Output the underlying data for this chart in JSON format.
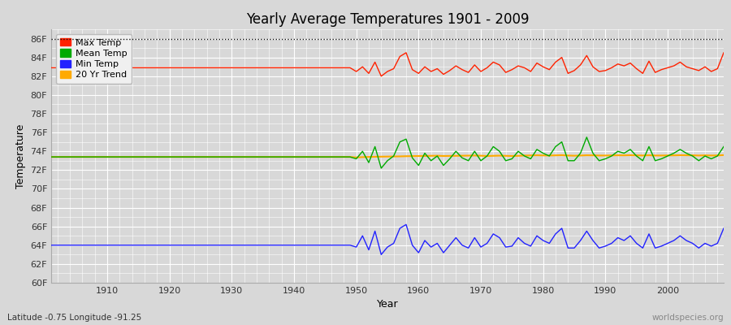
{
  "title": "Yearly Average Temperatures 1901 - 2009",
  "xlabel": "Year",
  "ylabel": "Temperature",
  "subtitle_left": "Latitude -0.75 Longitude -91.25",
  "subtitle_right": "worldspecies.org",
  "ylim": [
    60,
    87
  ],
  "yticks": [
    60,
    62,
    64,
    66,
    68,
    70,
    72,
    74,
    76,
    78,
    80,
    82,
    84,
    86
  ],
  "ytick_labels": [
    "60F",
    "62F",
    "64F",
    "66F",
    "68F",
    "70F",
    "72F",
    "74F",
    "76F",
    "78F",
    "80F",
    "82F",
    "84F",
    "86F"
  ],
  "xlim": [
    1901,
    2009
  ],
  "xticks": [
    1910,
    1920,
    1930,
    1940,
    1950,
    1960,
    1970,
    1980,
    1990,
    2000
  ],
  "hline_y": 86,
  "hline_color": "#111111",
  "bg_color": "#d8d8d8",
  "plot_bg_color": "#d8d8d8",
  "grid_color": "#ffffff",
  "max_color": "#ff2200",
  "mean_color": "#00aa00",
  "min_color": "#2222ff",
  "trend_color": "#ffaa00",
  "legend_labels": [
    "Max Temp",
    "Mean Temp",
    "Min Temp",
    "20 Yr Trend"
  ],
  "years": [
    1901,
    1902,
    1903,
    1904,
    1905,
    1906,
    1907,
    1908,
    1909,
    1910,
    1911,
    1912,
    1913,
    1914,
    1915,
    1916,
    1917,
    1918,
    1919,
    1920,
    1921,
    1922,
    1923,
    1924,
    1925,
    1926,
    1927,
    1928,
    1929,
    1930,
    1931,
    1932,
    1933,
    1934,
    1935,
    1936,
    1937,
    1938,
    1939,
    1940,
    1941,
    1942,
    1943,
    1944,
    1945,
    1946,
    1947,
    1948,
    1949,
    1950,
    1951,
    1952,
    1953,
    1954,
    1955,
    1956,
    1957,
    1958,
    1959,
    1960,
    1961,
    1962,
    1963,
    1964,
    1965,
    1966,
    1967,
    1968,
    1969,
    1970,
    1971,
    1972,
    1973,
    1974,
    1975,
    1976,
    1977,
    1978,
    1979,
    1980,
    1981,
    1982,
    1983,
    1984,
    1985,
    1986,
    1987,
    1988,
    1989,
    1990,
    1991,
    1992,
    1993,
    1994,
    1995,
    1996,
    1997,
    1998,
    1999,
    2000,
    2001,
    2002,
    2003,
    2004,
    2005,
    2006,
    2007,
    2008,
    2009
  ],
  "max_temp": [
    82.9,
    82.9,
    82.9,
    82.9,
    82.9,
    82.9,
    82.9,
    82.9,
    82.9,
    82.9,
    82.9,
    82.9,
    82.9,
    82.9,
    82.9,
    82.9,
    82.9,
    82.9,
    82.9,
    82.9,
    82.9,
    82.9,
    82.9,
    82.9,
    82.9,
    82.9,
    82.9,
    82.9,
    82.9,
    82.9,
    82.9,
    82.9,
    82.9,
    82.9,
    82.9,
    82.9,
    82.9,
    82.9,
    82.9,
    82.9,
    82.9,
    82.9,
    82.9,
    82.9,
    82.9,
    82.9,
    82.9,
    82.9,
    82.9,
    82.5,
    83.0,
    82.3,
    83.5,
    82.0,
    82.5,
    82.8,
    84.1,
    84.5,
    82.7,
    82.3,
    83.0,
    82.5,
    82.8,
    82.2,
    82.6,
    83.1,
    82.7,
    82.4,
    83.2,
    82.5,
    82.9,
    83.5,
    83.2,
    82.4,
    82.7,
    83.1,
    82.9,
    82.5,
    83.4,
    83.0,
    82.7,
    83.5,
    84.0,
    82.3,
    82.6,
    83.2,
    84.2,
    83.0,
    82.5,
    82.6,
    82.9,
    83.3,
    83.1,
    83.4,
    82.8,
    82.3,
    83.6,
    82.4,
    82.7,
    82.9,
    83.1,
    83.5,
    83.0,
    82.8,
    82.6,
    83.0,
    82.5,
    82.8,
    84.5
  ],
  "mean_temp": [
    73.4,
    73.4,
    73.4,
    73.4,
    73.4,
    73.4,
    73.4,
    73.4,
    73.4,
    73.4,
    73.4,
    73.4,
    73.4,
    73.4,
    73.4,
    73.4,
    73.4,
    73.4,
    73.4,
    73.4,
    73.4,
    73.4,
    73.4,
    73.4,
    73.4,
    73.4,
    73.4,
    73.4,
    73.4,
    73.4,
    73.4,
    73.4,
    73.4,
    73.4,
    73.4,
    73.4,
    73.4,
    73.4,
    73.4,
    73.4,
    73.4,
    73.4,
    73.4,
    73.4,
    73.4,
    73.4,
    73.4,
    73.4,
    73.4,
    73.2,
    74.0,
    72.8,
    74.5,
    72.2,
    73.0,
    73.5,
    75.0,
    75.3,
    73.3,
    72.5,
    73.8,
    73.0,
    73.5,
    72.5,
    73.2,
    74.0,
    73.3,
    73.0,
    74.0,
    73.0,
    73.5,
    74.5,
    74.0,
    73.0,
    73.2,
    74.0,
    73.5,
    73.2,
    74.2,
    73.8,
    73.5,
    74.5,
    75.0,
    73.0,
    73.0,
    73.8,
    75.5,
    73.8,
    73.0,
    73.2,
    73.5,
    74.0,
    73.8,
    74.2,
    73.5,
    73.0,
    74.5,
    73.0,
    73.2,
    73.5,
    73.8,
    74.2,
    73.8,
    73.5,
    73.0,
    73.5,
    73.2,
    73.5,
    74.5
  ],
  "min_temp": [
    64.0,
    64.0,
    64.0,
    64.0,
    64.0,
    64.0,
    64.0,
    64.0,
    64.0,
    64.0,
    64.0,
    64.0,
    64.0,
    64.0,
    64.0,
    64.0,
    64.0,
    64.0,
    64.0,
    64.0,
    64.0,
    64.0,
    64.0,
    64.0,
    64.0,
    64.0,
    64.0,
    64.0,
    64.0,
    64.0,
    64.0,
    64.0,
    64.0,
    64.0,
    64.0,
    64.0,
    64.0,
    64.0,
    64.0,
    64.0,
    64.0,
    64.0,
    64.0,
    64.0,
    64.0,
    64.0,
    64.0,
    64.0,
    64.0,
    63.8,
    65.0,
    63.5,
    65.5,
    63.0,
    63.8,
    64.2,
    65.8,
    66.2,
    64.0,
    63.2,
    64.5,
    63.8,
    64.2,
    63.2,
    64.0,
    64.8,
    64.0,
    63.7,
    64.8,
    63.8,
    64.2,
    65.2,
    64.8,
    63.8,
    63.9,
    64.8,
    64.2,
    63.9,
    65.0,
    64.5,
    64.2,
    65.2,
    65.8,
    63.7,
    63.7,
    64.5,
    65.5,
    64.5,
    63.7,
    63.9,
    64.2,
    64.8,
    64.5,
    65.0,
    64.2,
    63.7,
    65.2,
    63.7,
    63.9,
    64.2,
    64.5,
    65.0,
    64.5,
    64.2,
    63.7,
    64.2,
    63.9,
    64.2,
    65.8
  ],
  "trend_temp": [
    73.4,
    73.4,
    73.4,
    73.4,
    73.4,
    73.4,
    73.4,
    73.4,
    73.4,
    73.4,
    73.4,
    73.4,
    73.4,
    73.4,
    73.4,
    73.4,
    73.4,
    73.4,
    73.4,
    73.4,
    73.4,
    73.4,
    73.4,
    73.4,
    73.4,
    73.4,
    73.4,
    73.4,
    73.4,
    73.4,
    73.4,
    73.4,
    73.4,
    73.4,
    73.4,
    73.4,
    73.4,
    73.4,
    73.4,
    73.4,
    73.4,
    73.4,
    73.4,
    73.4,
    73.4,
    73.4,
    73.4,
    73.4,
    73.4,
    73.35,
    73.38,
    73.4,
    73.42,
    73.43,
    73.44,
    73.45,
    73.46,
    73.48,
    73.49,
    73.5,
    73.51,
    73.52,
    73.53,
    73.5,
    73.51,
    73.52,
    73.53,
    73.54,
    73.55,
    73.53,
    73.5,
    73.52,
    73.54,
    73.52,
    73.5,
    73.52,
    73.55,
    73.56,
    73.58,
    73.56,
    73.55,
    73.57,
    73.59,
    73.55,
    73.53,
    73.55,
    73.58,
    73.57,
    73.55,
    73.55,
    73.56,
    73.58,
    73.57,
    73.59,
    73.57,
    73.55,
    73.58,
    73.55,
    73.55,
    73.56,
    73.57,
    73.59,
    73.58,
    73.57,
    73.55,
    73.57,
    73.55,
    73.56,
    73.6
  ]
}
